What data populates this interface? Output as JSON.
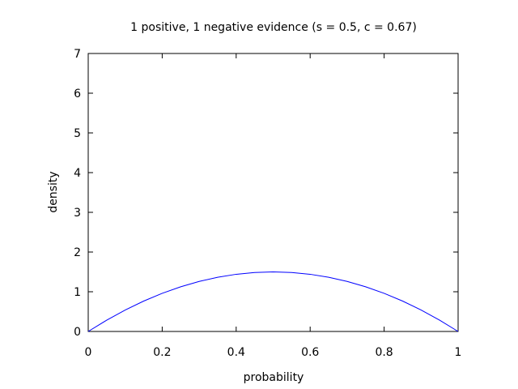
{
  "chart_data": {
    "type": "line",
    "title": "1 positive, 1 negative evidence (s = 0.5, c = 0.67)",
    "xlabel": "probability",
    "ylabel": "density",
    "xlim": [
      0,
      1
    ],
    "ylim": [
      0,
      7
    ],
    "xticks": [
      "0",
      "0.2",
      "0.4",
      "0.6",
      "0.8",
      "1"
    ],
    "yticks": [
      "0",
      "1",
      "2",
      "3",
      "4",
      "5",
      "6",
      "7"
    ],
    "grid": false,
    "legend": "none",
    "series": [
      {
        "color": "#0000ff",
        "x": [
          0,
          0.05,
          0.1,
          0.15,
          0.2,
          0.25,
          0.3,
          0.35,
          0.4,
          0.45,
          0.5,
          0.55,
          0.6,
          0.65,
          0.7,
          0.75,
          0.8,
          0.85,
          0.9,
          0.95,
          1
        ],
        "y": [
          0,
          0.285,
          0.54,
          0.765,
          0.96,
          1.125,
          1.26,
          1.365,
          1.44,
          1.485,
          1.5,
          1.485,
          1.44,
          1.365,
          1.26,
          1.125,
          0.96,
          0.765,
          0.54,
          0.285,
          0
        ]
      }
    ]
  }
}
